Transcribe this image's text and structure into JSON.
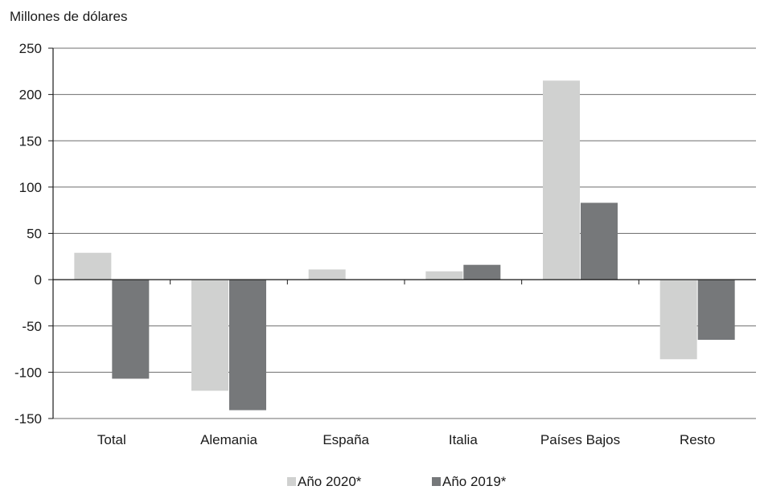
{
  "chart_data": {
    "type": "bar",
    "ylabel": "Millones de dólares",
    "ylim": [
      -150,
      250
    ],
    "yticks": [
      "250",
      "200",
      "150",
      "100",
      "50",
      "0",
      "-50",
      "-100",
      "-150"
    ],
    "ytick_values": [
      250,
      200,
      150,
      100,
      50,
      0,
      -50,
      -100,
      -150
    ],
    "grid": true,
    "legend_position": "bottom-center",
    "categories": [
      "Total",
      "Alemania",
      "España",
      "Italia",
      "Países Bajos",
      "Resto"
    ],
    "series": [
      {
        "name": "Año 2020*",
        "color": "#d0d1d0",
        "values": [
          29,
          -120,
          11,
          9,
          215,
          -86
        ]
      },
      {
        "name": "Año 2019*",
        "color": "#76787a",
        "values": [
          -107,
          -141,
          0,
          16,
          83,
          -65
        ]
      }
    ]
  }
}
